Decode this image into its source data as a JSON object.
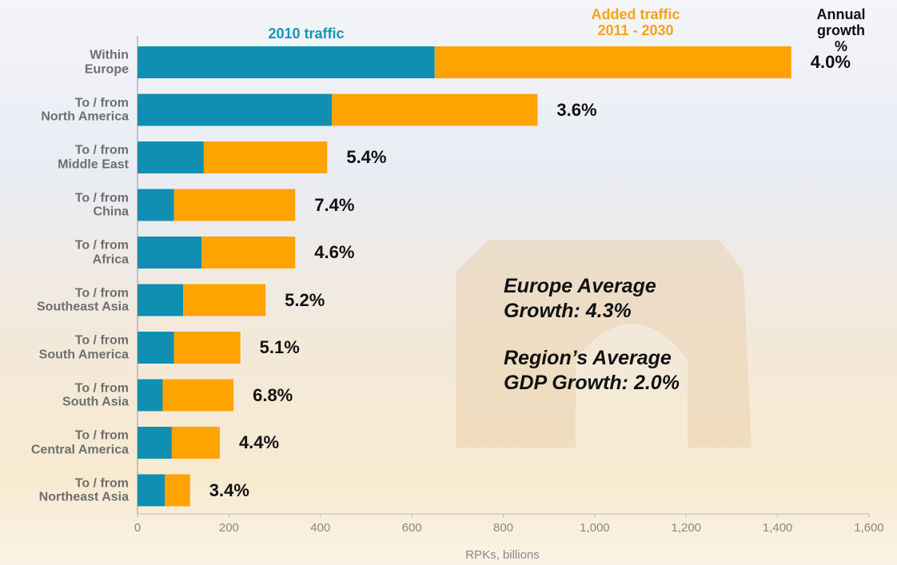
{
  "chart_data": {
    "type": "stacked-barh",
    "categories": [
      "Within\nEurope",
      "To / from\nNorth America",
      "To / from\nMiddle East",
      "To / from\nChina",
      "To / from\nAfrica",
      "To / from\nSoutheast Asia",
      "To / from\nSouth America",
      "To / from\nSouth Asia",
      "To / from\nCentral America",
      "To / from\nNortheast Asia"
    ],
    "series": [
      {
        "name": "2010 traffic",
        "color": "#108fb3",
        "values": [
          650,
          425,
          145,
          80,
          140,
          100,
          80,
          55,
          75,
          60
        ]
      },
      {
        "name": "Added traffic\n2011 - 2030",
        "color": "#ffa300",
        "values": [
          780,
          450,
          270,
          265,
          205,
          180,
          145,
          155,
          105,
          55
        ]
      }
    ],
    "growth": {
      "name": "Annual\ngrowth %",
      "values": [
        4.0,
        3.6,
        5.4,
        7.4,
        4.6,
        5.2,
        5.1,
        6.8,
        4.4,
        3.4
      ],
      "value_labels": [
        "4.0%",
        "3.6%",
        "5.4%",
        "7.4%",
        "4.6%",
        "5.2%",
        "5.1%",
        "6.8%",
        "4.4%",
        "3.4%"
      ]
    },
    "xlim": [
      0,
      1600
    ],
    "xticks": [
      0,
      200,
      400,
      600,
      800,
      {
        "value": 1000,
        "label": "1,000"
      },
      {
        "value": 1200,
        "label": "1,200"
      },
      {
        "value": 1400,
        "label": "1,400"
      },
      {
        "value": 1600,
        "label": "1,600"
      }
    ],
    "xlabel": "RPKs, billions",
    "annotations": [
      "Europe Average\nGrowth:  4.3%",
      "Region’s Average\nGDP Growth: 2.0%"
    ]
  }
}
